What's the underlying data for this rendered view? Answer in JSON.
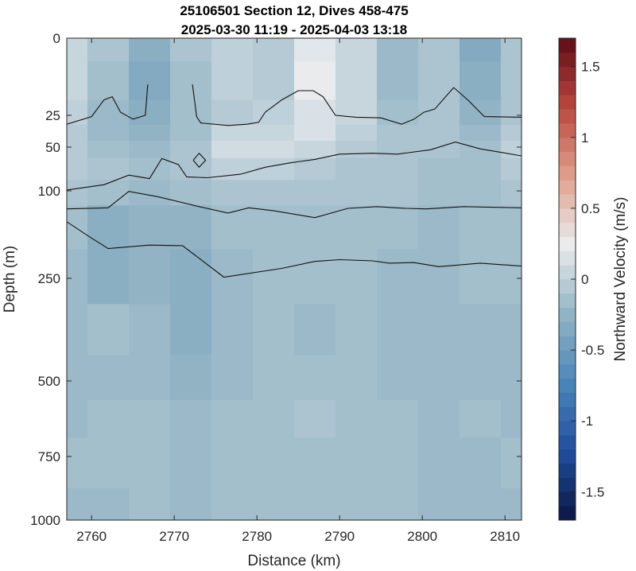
{
  "chart_data": {
    "type": "heatmap",
    "title": "25106501 Section 12, Dives 458-475",
    "subtitle": "2025-03-30 11:19 - 2025-04-03 13:18",
    "xlabel": "Distance (km)",
    "ylabel": "Depth (m)",
    "colorbar_label": "Northward Velocity (m/s)",
    "xlim": [
      2757,
      2812
    ],
    "ylim": [
      0,
      1000
    ],
    "x_ticks": [
      2760,
      2770,
      2780,
      2790,
      2800,
      2810
    ],
    "x_tick_labels": [
      "2760",
      "2770",
      "2780",
      "2790",
      "2800",
      "2810"
    ],
    "y_ticks": [
      0,
      25,
      50,
      100,
      250,
      500,
      750,
      1000
    ],
    "y_tick_labels": [
      "0",
      "25",
      "50",
      "100",
      "250",
      "500",
      "750",
      "1000"
    ],
    "y_scale": "piecewise-stretched (upper 250 m expanded)",
    "clim": [
      -1.7,
      1.7
    ],
    "colorbar_ticks": [
      -1.5,
      -1,
      -0.5,
      0,
      0.5,
      1,
      1.5
    ],
    "colorbar_tick_labels": [
      "-1.5",
      "-1",
      "-0.5",
      "0",
      "0.5",
      "1",
      "1.5"
    ],
    "colormap": "diverging blue-white-red",
    "colormap_stops": [
      "#0b1640",
      "#1f4e9e",
      "#4a86b8",
      "#93b4c4",
      "#e9ecee",
      "#dfa08c",
      "#b9483f",
      "#5e0b17"
    ],
    "x": [
      2757,
      2762,
      2767,
      2772,
      2777,
      2782,
      2787,
      2792,
      2797,
      2802,
      2807,
      2812
    ],
    "depths": [
      0,
      15,
      25,
      40,
      50,
      75,
      100,
      150,
      250,
      375,
      500,
      625,
      750,
      1000
    ],
    "velocity": [
      [
        0.05,
        -0.1,
        -0.3,
        -0.1,
        0.0,
        -0.05,
        0.2,
        0.05,
        -0.2,
        -0.1,
        -0.35,
        -0.1
      ],
      [
        0.05,
        -0.15,
        -0.35,
        -0.15,
        0.0,
        -0.05,
        0.25,
        0.05,
        -0.2,
        -0.1,
        -0.3,
        -0.1
      ],
      [
        0.0,
        -0.2,
        -0.3,
        -0.15,
        -0.05,
        0.0,
        0.15,
        0.05,
        -0.15,
        -0.1,
        -0.25,
        -0.1
      ],
      [
        -0.05,
        -0.2,
        -0.25,
        -0.15,
        0.05,
        0.05,
        0.15,
        0.0,
        -0.1,
        -0.1,
        -0.2,
        -0.05
      ],
      [
        -0.05,
        -0.15,
        -0.2,
        -0.1,
        0.1,
        0.1,
        0.05,
        -0.05,
        -0.1,
        -0.1,
        -0.15,
        0.0
      ],
      [
        -0.05,
        -0.1,
        -0.15,
        -0.1,
        0.0,
        0.0,
        -0.05,
        -0.1,
        -0.1,
        -0.15,
        -0.15,
        -0.05
      ],
      [
        -0.1,
        -0.15,
        -0.2,
        -0.15,
        -0.1,
        -0.1,
        -0.1,
        -0.1,
        -0.1,
        -0.15,
        -0.15,
        -0.1
      ],
      [
        -0.15,
        -0.3,
        -0.25,
        -0.25,
        -0.15,
        -0.15,
        -0.15,
        -0.15,
        -0.15,
        -0.2,
        -0.15,
        -0.15
      ],
      [
        -0.2,
        -0.3,
        -0.25,
        -0.3,
        -0.2,
        -0.15,
        -0.15,
        -0.15,
        -0.2,
        -0.2,
        -0.15,
        -0.15
      ],
      [
        -0.2,
        -0.15,
        -0.2,
        -0.3,
        -0.2,
        -0.15,
        -0.2,
        -0.15,
        -0.2,
        -0.2,
        -0.2,
        -0.2
      ],
      [
        -0.2,
        -0.2,
        -0.2,
        -0.25,
        -0.2,
        -0.15,
        -0.15,
        -0.15,
        -0.2,
        -0.2,
        -0.2,
        -0.2
      ],
      [
        -0.2,
        -0.15,
        -0.15,
        -0.2,
        -0.15,
        -0.15,
        -0.1,
        -0.15,
        -0.15,
        -0.2,
        -0.15,
        -0.2
      ],
      [
        -0.15,
        -0.15,
        -0.15,
        -0.2,
        -0.15,
        -0.15,
        -0.15,
        -0.15,
        -0.15,
        -0.2,
        -0.2,
        -0.15
      ],
      [
        -0.2,
        -0.2,
        -0.15,
        -0.2,
        -0.15,
        -0.15,
        -0.15,
        -0.15,
        -0.15,
        -0.2,
        -0.2,
        -0.2
      ]
    ],
    "isopycnal_contours": [
      [
        [
          2757,
          32
        ],
        [
          2760,
          26
        ],
        [
          2761.5,
          20
        ],
        [
          2762.5,
          19
        ],
        [
          2763.5,
          24
        ],
        [
          2765,
          28
        ],
        [
          2766.5,
          25
        ],
        [
          2766.8,
          15
        ]
      ],
      [
        [
          2772.2,
          15
        ],
        [
          2772.7,
          26
        ],
        [
          2773.2,
          31
        ],
        [
          2776.5,
          33
        ],
        [
          2778.8,
          32
        ],
        [
          2780.2,
          30.5
        ],
        [
          2781,
          24
        ],
        [
          2783,
          20
        ],
        [
          2785,
          17
        ],
        [
          2786.8,
          17
        ],
        [
          2788,
          19
        ],
        [
          2789.5,
          25
        ],
        [
          2792,
          26.5
        ],
        [
          2795,
          27
        ],
        [
          2797.5,
          32
        ],
        [
          2799,
          28
        ],
        [
          2800.2,
          24
        ],
        [
          2801.5,
          23
        ],
        [
          2803.8,
          16
        ],
        [
          2805.5,
          20
        ],
        [
          2807.5,
          26
        ],
        [
          2812,
          26.5
        ]
      ],
      [
        [
          2772.3,
          65
        ],
        [
          2773,
          57
        ],
        [
          2773.8,
          65
        ],
        [
          2773,
          73
        ],
        [
          2772.3,
          65
        ]
      ],
      [
        [
          2757,
          99
        ],
        [
          2761.5,
          93
        ],
        [
          2764.5,
          82
        ],
        [
          2767,
          86
        ],
        [
          2768.5,
          63
        ],
        [
          2770.5,
          70
        ],
        [
          2771.5,
          84
        ],
        [
          2774,
          85
        ],
        [
          2778,
          81
        ],
        [
          2781,
          73
        ],
        [
          2784,
          68
        ],
        [
          2787,
          64
        ],
        [
          2790,
          58
        ],
        [
          2794,
          57
        ],
        [
          2797,
          58
        ],
        [
          2801,
          53
        ],
        [
          2804,
          46
        ],
        [
          2807,
          52
        ],
        [
          2812,
          60
        ]
      ],
      [
        [
          2757,
          131
        ],
        [
          2762,
          129
        ],
        [
          2764.5,
          101
        ],
        [
          2768,
          110
        ],
        [
          2773,
          127
        ],
        [
          2776.5,
          138
        ],
        [
          2779,
          129
        ],
        [
          2782,
          134
        ],
        [
          2787,
          146
        ],
        [
          2791,
          130
        ],
        [
          2794.5,
          127
        ],
        [
          2798,
          130
        ],
        [
          2800.5,
          131
        ],
        [
          2805,
          127
        ],
        [
          2812,
          129
        ]
      ],
      [
        [
          2757,
          153
        ],
        [
          2760,
          181
        ],
        [
          2762,
          199
        ],
        [
          2767,
          193
        ],
        [
          2771,
          194
        ],
        [
          2776,
          248
        ],
        [
          2783,
          233
        ],
        [
          2787,
          221
        ],
        [
          2790,
          218
        ],
        [
          2794,
          220
        ],
        [
          2796,
          224
        ],
        [
          2799,
          223
        ],
        [
          2802,
          230
        ],
        [
          2807,
          224
        ],
        [
          2812,
          229
        ]
      ]
    ]
  }
}
